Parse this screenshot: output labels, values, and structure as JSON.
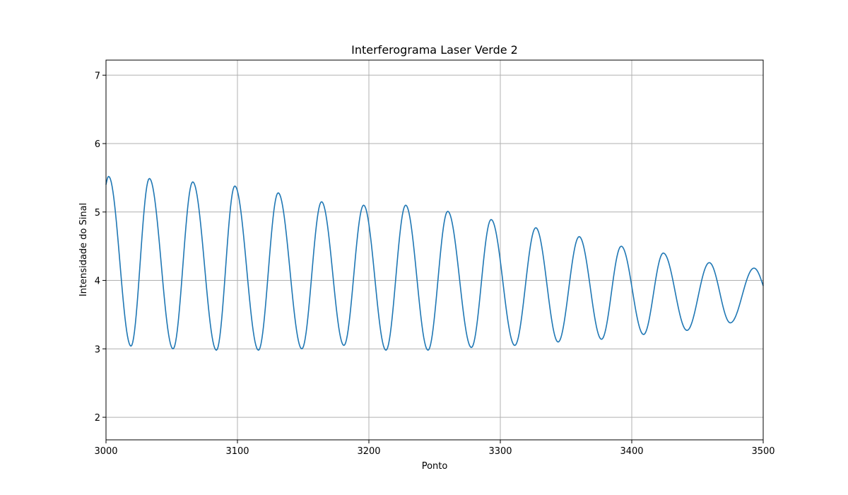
{
  "chart_data": {
    "type": "line",
    "title": "Interferograma Laser Verde 2",
    "xlabel": "Ponto",
    "ylabel": "Intensidade do Sinal",
    "xlim": [
      3000,
      3500
    ],
    "ylim": [
      1.67,
      7.22
    ],
    "xticks": [
      3000,
      3100,
      3200,
      3300,
      3400,
      3500
    ],
    "yticks": [
      2,
      3,
      4,
      5,
      6,
      7
    ],
    "grid": true,
    "color": "#1f77b4",
    "series": [
      {
        "peaks": [
          [
            3002,
            5.52
          ],
          [
            3033,
            5.49
          ],
          [
            3066,
            5.44
          ],
          [
            3098,
            5.38
          ],
          [
            3131,
            5.28
          ],
          [
            3164,
            5.15
          ],
          [
            3196,
            5.1
          ],
          [
            3228,
            5.1
          ],
          [
            3260,
            5.01
          ],
          [
            3293,
            4.89
          ],
          [
            3327,
            4.77
          ],
          [
            3360,
            4.64
          ],
          [
            3392,
            4.5
          ],
          [
            3424,
            4.4
          ],
          [
            3459,
            4.26
          ],
          [
            3493,
            4.18
          ]
        ],
        "troughs": [
          [
            3019,
            3.04
          ],
          [
            3051,
            3.0
          ],
          [
            3084,
            2.98
          ],
          [
            3116,
            2.98
          ],
          [
            3149,
            3.0
          ],
          [
            3181,
            3.05
          ],
          [
            3213,
            2.98
          ],
          [
            3245,
            2.98
          ],
          [
            3278,
            3.02
          ],
          [
            3311,
            3.05
          ],
          [
            3344,
            3.1
          ],
          [
            3377,
            3.14
          ],
          [
            3409,
            3.21
          ],
          [
            3442,
            3.27
          ],
          [
            3475,
            3.38
          ]
        ],
        "start": [
          3000,
          5.4
        ],
        "end": [
          3500,
          3.92
        ]
      }
    ]
  }
}
